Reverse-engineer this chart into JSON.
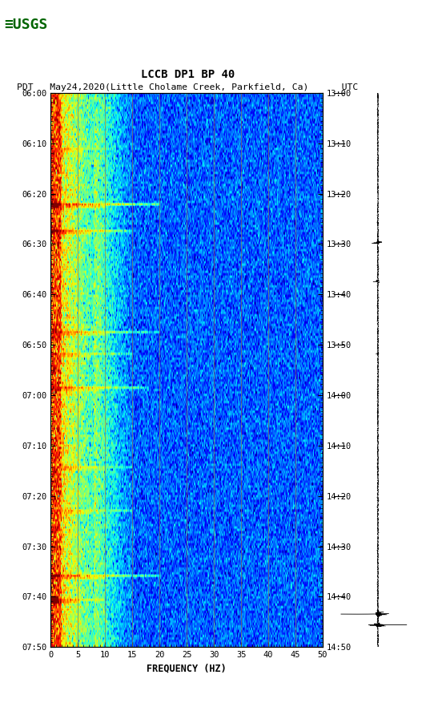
{
  "title_line1": "LCCB DP1 BP 40",
  "title_line2": "PDT   May24,2020(Little Cholame Creek, Parkfield, Ca)      UTC",
  "xlabel": "FREQUENCY (HZ)",
  "freq_min": 0,
  "freq_max": 50,
  "ytick_pdt": [
    "06:00",
    "06:10",
    "06:20",
    "06:30",
    "06:40",
    "06:50",
    "07:00",
    "07:10",
    "07:20",
    "07:30",
    "07:40",
    "07:50"
  ],
  "ytick_utc": [
    "13:00",
    "13:10",
    "13:20",
    "13:30",
    "13:40",
    "13:50",
    "14:00",
    "14:10",
    "14:20",
    "14:30",
    "14:40",
    "14:50"
  ],
  "xticks": [
    0,
    5,
    10,
    15,
    20,
    25,
    30,
    35,
    40,
    45,
    50
  ],
  "grid_color": "#8B7355",
  "fig_bg": "#ffffff",
  "usgs_color": "#006400",
  "n_time": 230,
  "n_freq": 500
}
